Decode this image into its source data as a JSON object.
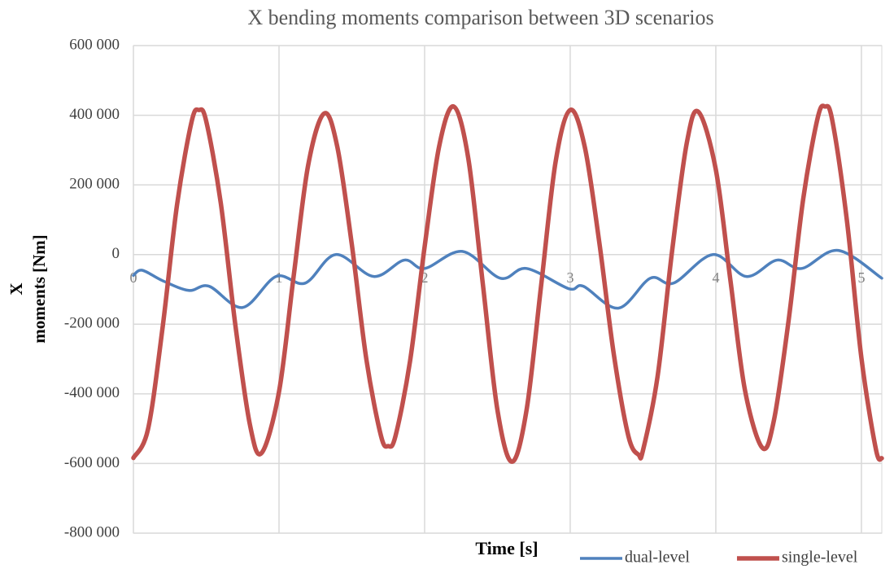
{
  "chart_data": {
    "type": "line",
    "title": "X bending moments comparison between 3D scenarios",
    "x_label": "Time [s]",
    "y_label": [
      "X",
      "moments [Nm]"
    ],
    "xlim": [
      0,
      5.14
    ],
    "ylim": [
      -800000,
      600000
    ],
    "xticks": [
      0,
      1,
      2,
      3,
      4,
      5
    ],
    "yticks": [
      {
        "value": -800000,
        "label": "-800 000"
      },
      {
        "value": -600000,
        "label": "-600 000"
      },
      {
        "value": -400000,
        "label": "-400 000"
      },
      {
        "value": -200000,
        "label": "-200 000"
      },
      0,
      {
        "value": 200000,
        "label": "200 000"
      },
      {
        "value": 400000,
        "label": "400 000"
      },
      {
        "value": 600000,
        "label": "600 000"
      }
    ],
    "grid": true,
    "legend": "bottom-right",
    "series": [
      {
        "name": "dual-level",
        "color": "#4f81bd",
        "x": [
          0,
          0.06,
          0.2,
          0.38,
          0.52,
          0.75,
          0.98,
          1.18,
          1.39,
          1.65,
          1.86,
          2.0,
          2.26,
          2.52,
          2.7,
          2.99,
          3.09,
          3.33,
          3.55,
          3.71,
          3.98,
          4.21,
          4.42,
          4.59,
          4.84,
          5.14
        ],
        "values": [
          -60000,
          -45000,
          -75000,
          -103000,
          -91000,
          -152000,
          -63000,
          -82000,
          0,
          -63000,
          -16000,
          -40000,
          9000,
          -68000,
          -40000,
          -98000,
          -91000,
          -154000,
          -68000,
          -82000,
          0,
          -63000,
          -16000,
          -40000,
          12000,
          -68000
        ]
      },
      {
        "name": "single-level",
        "color": "#c0504d",
        "x": [
          0,
          0.1,
          0.2,
          0.3,
          0.4,
          0.45,
          0.5,
          0.6,
          0.7,
          0.8,
          0.88,
          1.0,
          1.1,
          1.2,
          1.31,
          1.4,
          1.5,
          1.6,
          1.7,
          1.75,
          1.8,
          1.9,
          2.0,
          2.1,
          2.2,
          2.3,
          2.4,
          2.5,
          2.6,
          2.7,
          2.8,
          2.9,
          3.0,
          3.1,
          3.2,
          3.3,
          3.4,
          3.47,
          3.5,
          3.6,
          3.7,
          3.8,
          3.88,
          4.0,
          4.1,
          4.2,
          4.32,
          4.4,
          4.5,
          4.6,
          4.7,
          4.75,
          4.8,
          4.9,
          5.0,
          5.1,
          5.14
        ],
        "values": [
          -584000,
          -502000,
          -211000,
          144000,
          382000,
          415000,
          383000,
          148000,
          -202000,
          -488000,
          -570000,
          -394000,
          -64000,
          256000,
          405000,
          310000,
          29000,
          -301000,
          -520000,
          -550000,
          -521000,
          -306000,
          22000,
          311000,
          425000,
          276000,
          -85000,
          -446000,
          -595000,
          -447000,
          -90000,
          267000,
          415000,
          309000,
          34000,
          -288000,
          -522000,
          -575000,
          -562000,
          -350000,
          11000,
          319000,
          410000,
          244000,
          -73000,
          -389000,
          -555000,
          -474000,
          -189000,
          159000,
          393000,
          425000,
          385000,
          99000,
          -297000,
          -560000,
          -585000
        ]
      }
    ]
  }
}
